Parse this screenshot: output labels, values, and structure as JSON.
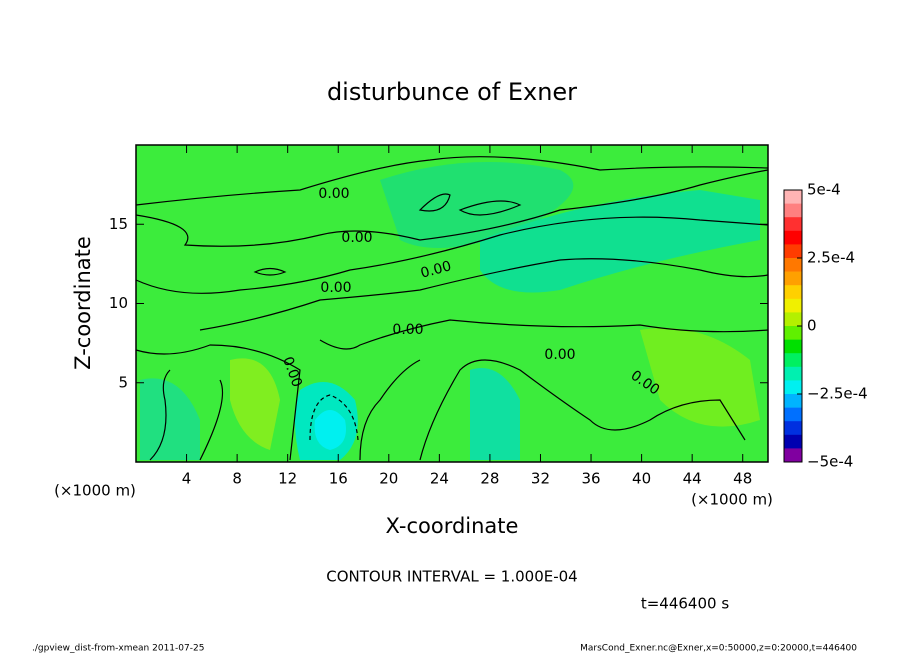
{
  "chart_data": {
    "type": "contour",
    "title": "disturbunce of Exner",
    "xlabel": "X-coordinate",
    "ylabel": "Z-coordinate",
    "x_unit": "(×1000 m)",
    "x_unit_right": "(×1000 m)",
    "xlim": [
      0,
      50
    ],
    "xticks": [
      4,
      8,
      12,
      16,
      20,
      24,
      28,
      32,
      36,
      40,
      44,
      48
    ],
    "ylim": [
      0,
      20
    ],
    "yticks": [
      5,
      10,
      15
    ],
    "contour_labels": [
      "0.00",
      "0.00",
      "0.00",
      "0.00",
      "0.00",
      "0.00",
      "0.00",
      "0.00"
    ],
    "contour_interval": "CONTOUR INTERVAL = 1.000E-04",
    "time": "t=446400 s",
    "footer_left": "./gpview_dist-from-xmean  2011-07-25",
    "footer_right": "MarsCond_Exner.nc@Exner,x=0:50000,z=0:20000,t=446400",
    "colorbar": {
      "clim": [
        -0.0005,
        0.0005
      ],
      "ticks": [
        {
          "value": 0.0005,
          "label": "5e-4"
        },
        {
          "value": 0.00025,
          "label": "2.5e-4"
        },
        0,
        {
          "value": -0.00025,
          "label": "−2.5e-4"
        },
        {
          "value": -0.0005,
          "label": "−5e-4"
        }
      ],
      "colors": [
        "#ffb4b4",
        "#ff8080",
        "#ff3030",
        "#ff0000",
        "#ff3c00",
        "#ff7800",
        "#ffa000",
        "#ffd000",
        "#f0f000",
        "#b4f000",
        "#60f000",
        "#00e000",
        "#00f060",
        "#00f0b0",
        "#00f0f0",
        "#00b4ff",
        "#0070ff",
        "#0030e0",
        "#0000b0",
        "#8000a0"
      ]
    }
  }
}
